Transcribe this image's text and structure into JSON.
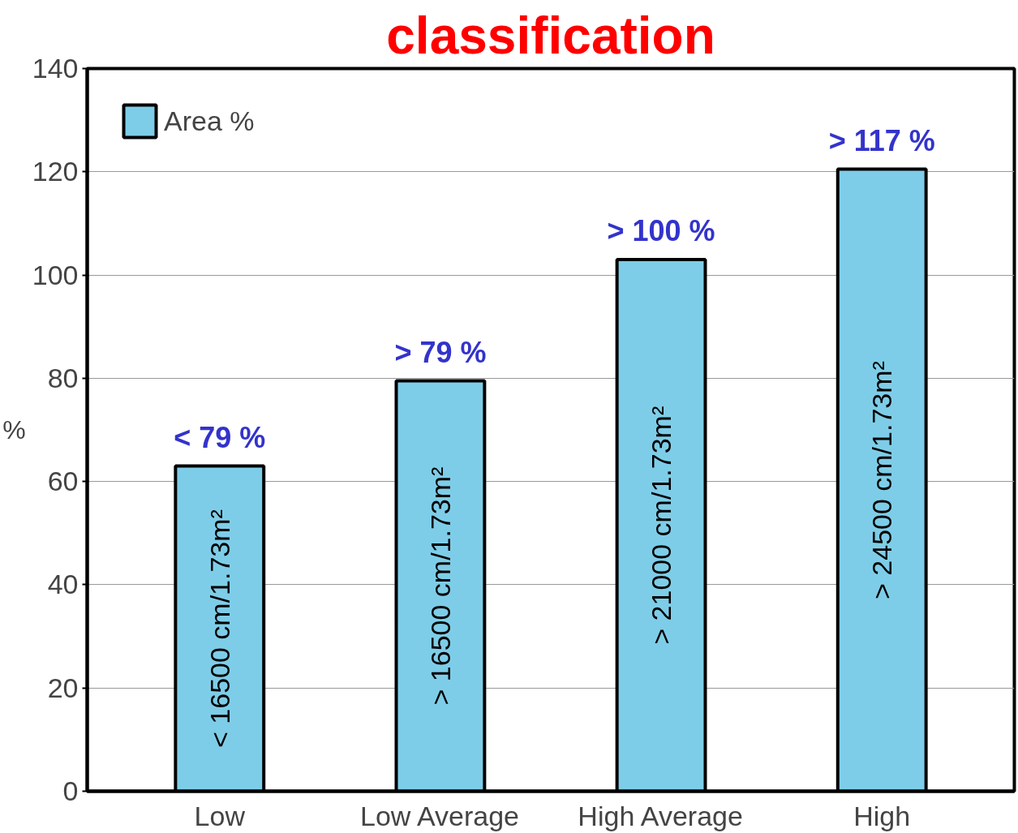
{
  "chart_data": {
    "type": "bar",
    "title": "classification",
    "ylabel": "%",
    "categories": [
      "Low",
      "Low Average",
      "High Average",
      "High"
    ],
    "series": [
      {
        "name": "Area %",
        "color": "#7ecde8",
        "values": [
          63,
          79.5,
          103,
          120.5
        ]
      }
    ],
    "annotations": [
      {
        "text": "< 79 %",
        "x": "Low",
        "y": 63
      },
      {
        "text": "> 79 %",
        "x": "Low Average",
        "y": 79.5
      },
      {
        "text": "> 100 %",
        "x": "High Average",
        "y": 103
      },
      {
        "text": "> 117 %",
        "x": "High",
        "y": 120.5
      },
      "< 16500 cm/1.73m²",
      "> 16500 cm/1.73m²",
      "> 21000 cm/1.73m²",
      "> 24500 cm/1.73m²"
    ],
    "ylim": [
      0,
      140
    ],
    "yticks": [
      0,
      20,
      40,
      60,
      80,
      100,
      120,
      140
    ],
    "grid": "y",
    "legend": "top left"
  }
}
